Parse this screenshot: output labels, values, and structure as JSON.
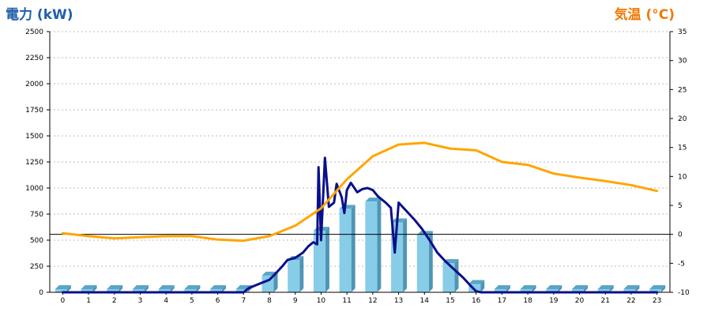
{
  "chart_data": {
    "type": "bar",
    "y_left_title": "電力 (kW)",
    "y_right_title": "気温 (°C)",
    "y_left_range": [
      0,
      2500
    ],
    "y_left_ticks": [
      "0",
      "250",
      "500",
      "750",
      "1000",
      "1250",
      "1500",
      "1750",
      "2000",
      "2250",
      "2500"
    ],
    "y_right_range": [
      -10,
      35
    ],
    "y_right_ticks": [
      "-10",
      "-5",
      "0",
      "5",
      "10",
      "15",
      "20",
      "25",
      "30",
      "35"
    ],
    "categories": [
      "0",
      "1",
      "2",
      "3",
      "4",
      "5",
      "6",
      "7",
      "8",
      "9",
      "10",
      "11",
      "12",
      "13",
      "14",
      "15",
      "16",
      "17",
      "18",
      "19",
      "20",
      "21",
      "22",
      "23"
    ],
    "grid": true,
    "zero_line_right_axis": 0,
    "series": [
      {
        "kind": "bar",
        "axis": "left",
        "values": [
          0,
          0,
          0,
          0,
          0,
          0,
          0,
          20,
          160,
          310,
          590,
          800,
          870,
          670,
          550,
          280,
          80,
          0,
          0,
          0,
          0,
          0,
          0,
          0
        ]
      },
      {
        "kind": "line",
        "axis": "left",
        "points": [
          [
            0,
            0
          ],
          [
            7,
            0
          ],
          [
            7.2,
            40
          ],
          [
            7.6,
            80
          ],
          [
            8,
            120
          ],
          [
            8.2,
            170
          ],
          [
            8.5,
            250
          ],
          [
            8.7,
            310
          ],
          [
            9,
            330
          ],
          [
            9.3,
            380
          ],
          [
            9.5,
            440
          ],
          [
            9.7,
            480
          ],
          [
            9.85,
            460
          ],
          [
            9.9,
            1200
          ],
          [
            10.0,
            500
          ],
          [
            10.15,
            1290
          ],
          [
            10.3,
            820
          ],
          [
            10.5,
            860
          ],
          [
            10.6,
            1040
          ],
          [
            10.8,
            910
          ],
          [
            10.9,
            760
          ],
          [
            11.0,
            980
          ],
          [
            11.15,
            1050
          ],
          [
            11.4,
            960
          ],
          [
            11.6,
            990
          ],
          [
            11.8,
            1000
          ],
          [
            12.0,
            980
          ],
          [
            12.2,
            920
          ],
          [
            12.5,
            860
          ],
          [
            12.7,
            810
          ],
          [
            12.85,
            380
          ],
          [
            13.0,
            860
          ],
          [
            13.3,
            780
          ],
          [
            13.6,
            700
          ],
          [
            13.9,
            610
          ],
          [
            14.2,
            500
          ],
          [
            14.5,
            380
          ],
          [
            14.8,
            300
          ],
          [
            15.1,
            230
          ],
          [
            15.5,
            140
          ],
          [
            15.8,
            60
          ],
          [
            16.0,
            10
          ],
          [
            16.2,
            0
          ],
          [
            23,
            0
          ]
        ]
      },
      {
        "kind": "line",
        "axis": "right",
        "points": [
          [
            0,
            0.2
          ],
          [
            1,
            -0.3
          ],
          [
            2,
            -0.7
          ],
          [
            3,
            -0.5
          ],
          [
            4,
            -0.3
          ],
          [
            5,
            -0.3
          ],
          [
            6,
            -0.9
          ],
          [
            7,
            -1.1
          ],
          [
            8,
            -0.3
          ],
          [
            9,
            1.5
          ],
          [
            10,
            4.5
          ],
          [
            11,
            9.5
          ],
          [
            12,
            13.5
          ],
          [
            13,
            15.5
          ],
          [
            14,
            15.8
          ],
          [
            15,
            14.8
          ],
          [
            16,
            14.5
          ],
          [
            17,
            12.5
          ],
          [
            18,
            12.0
          ],
          [
            19,
            10.5
          ],
          [
            20,
            9.8
          ],
          [
            21,
            9.2
          ],
          [
            22,
            8.5
          ],
          [
            23,
            7.5
          ]
        ]
      }
    ]
  },
  "colors": {
    "left_title": "#1f5fa8",
    "right_title": "#f07800",
    "bar_front": "#87cde8",
    "bar_side": "#4f95b5",
    "bar_top": "#5aa5c6",
    "power_line": "#0a0f8a",
    "temp_line": "#ffa500",
    "grid": "#bbbbbb",
    "axis": "#000000"
  }
}
